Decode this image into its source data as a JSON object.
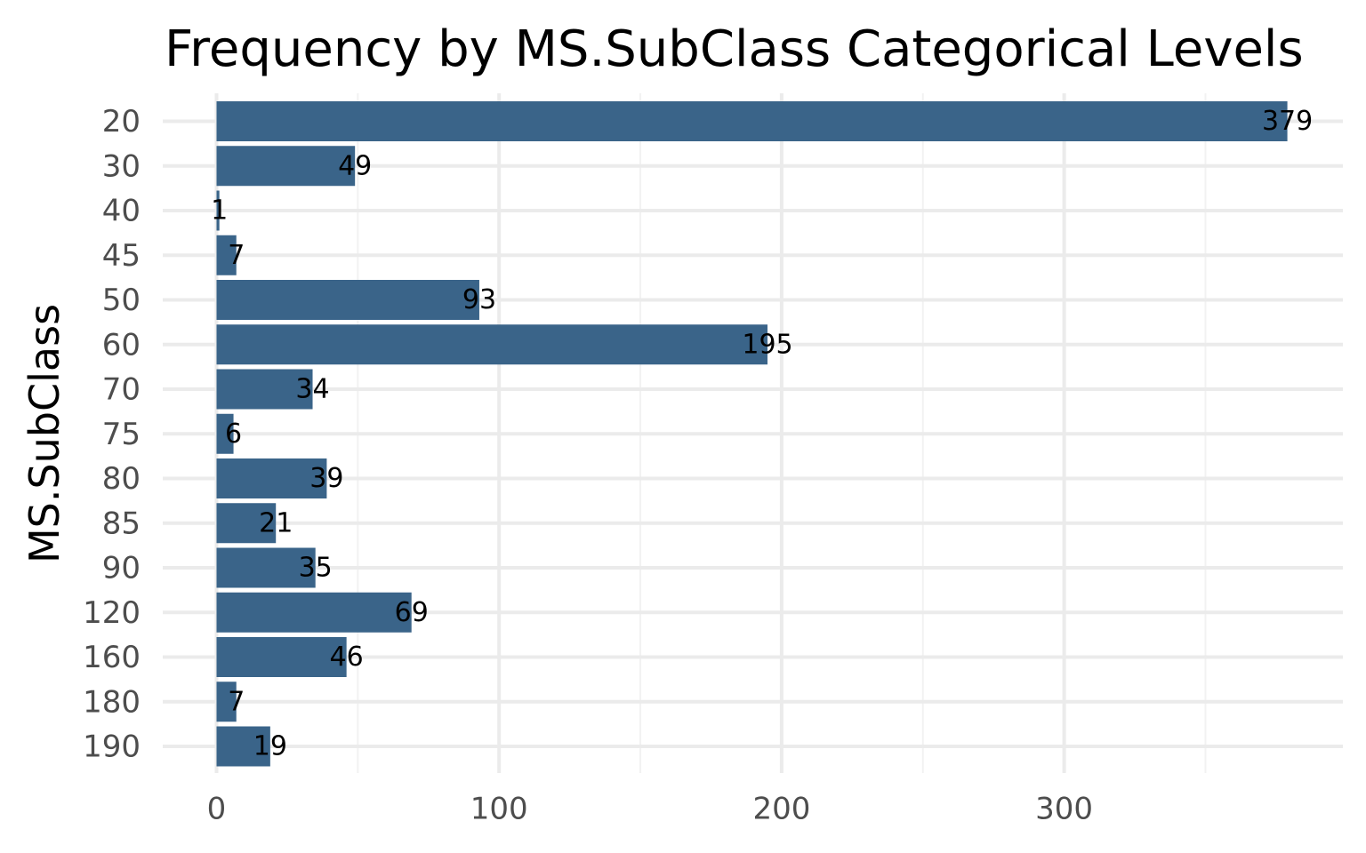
{
  "chart_data": {
    "type": "bar",
    "orientation": "horizontal",
    "title": "Frequency by MS.SubClass Categorical Levels",
    "xlabel": "",
    "ylabel": "MS.SubClass",
    "categories": [
      "20",
      "30",
      "40",
      "45",
      "50",
      "60",
      "70",
      "75",
      "80",
      "85",
      "90",
      "120",
      "160",
      "180",
      "190"
    ],
    "values": [
      379,
      49,
      1,
      7,
      93,
      195,
      34,
      6,
      39,
      21,
      35,
      69,
      46,
      7,
      19
    ],
    "xlim": [
      0,
      400
    ],
    "xticks": [
      0,
      100,
      200,
      300
    ],
    "grid": true,
    "bar_color": "#3a6489",
    "data_labels": true
  }
}
